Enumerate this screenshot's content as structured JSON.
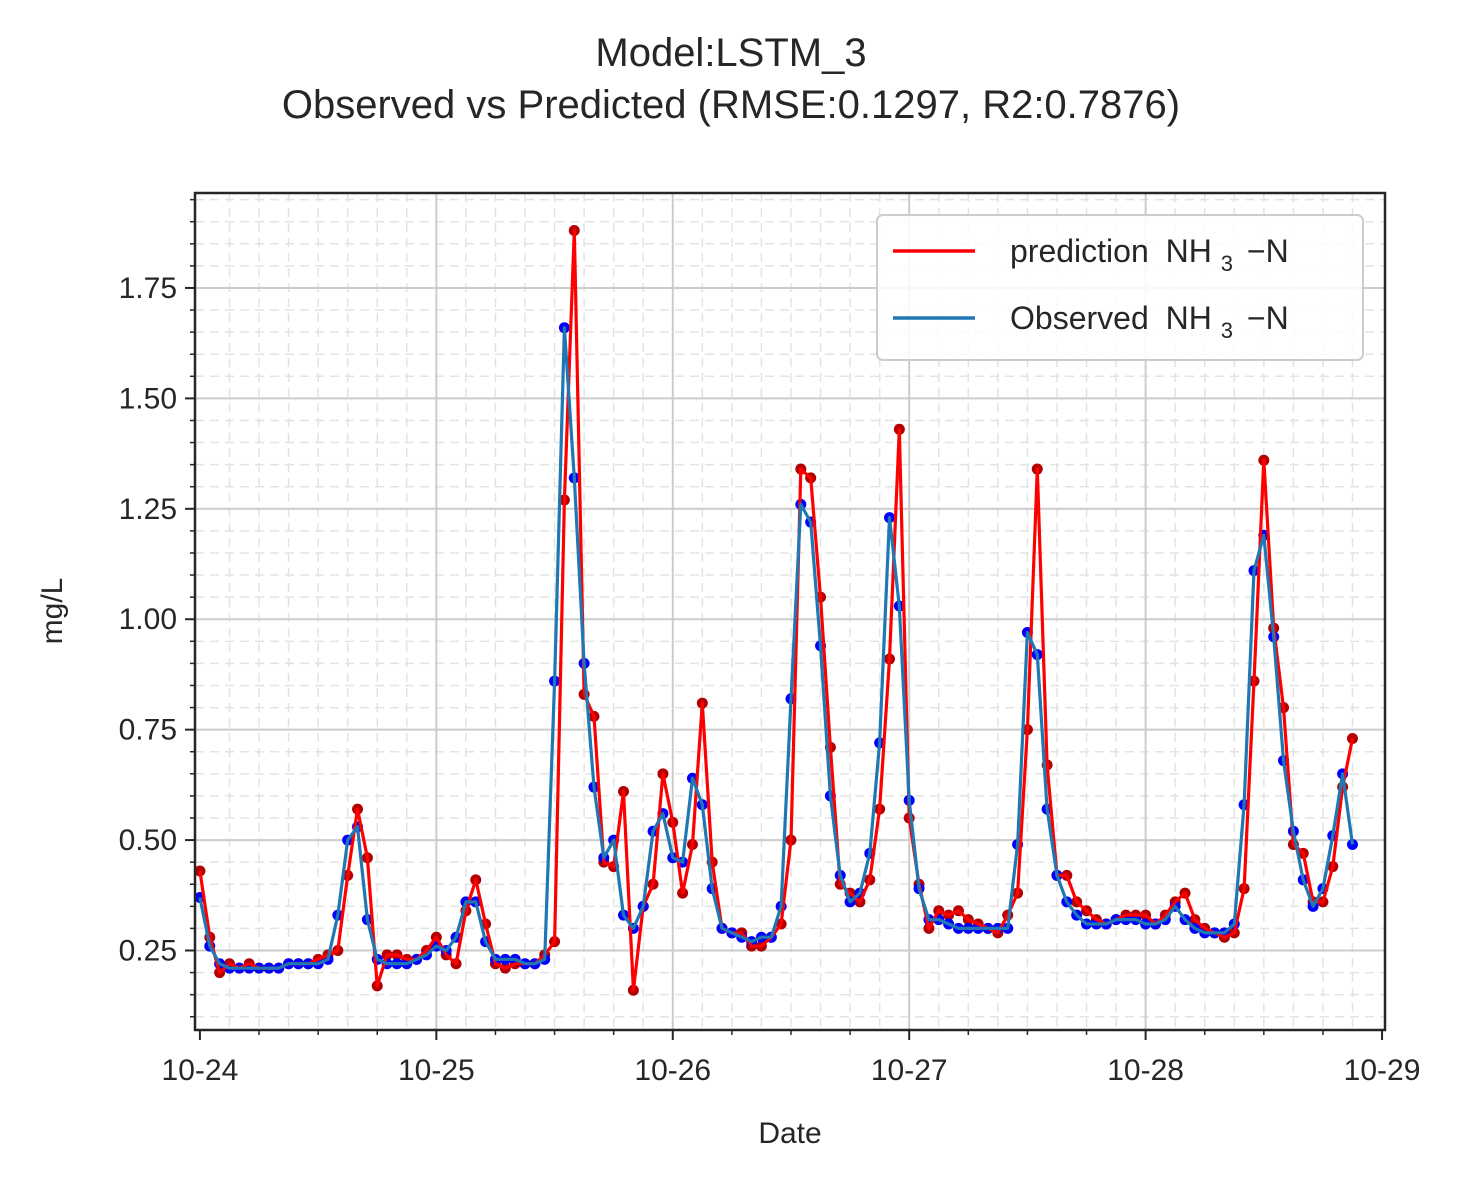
{
  "chart_data": {
    "type": "line",
    "title": "Model:LSTM_3",
    "subtitle": "Observed vs Predicted (RMSE:0.1297, R2:0.7876)",
    "xlabel": "Date",
    "ylabel": "mg/L",
    "x_start": "10-24",
    "x_step_hours": 1,
    "x_ticks": [
      "10-24",
      "10-25",
      "10-26",
      "10-27",
      "10-28",
      "10-29"
    ],
    "xlim_hours": [
      -0.5,
      120.3
    ],
    "y_ticks": [
      "0.25",
      "0.50",
      "0.75",
      "1.00",
      "1.25",
      "1.50",
      "1.75"
    ],
    "ylim": [
      0.07,
      1.965
    ],
    "grid": true,
    "legend_position": "top-right",
    "series": [
      {
        "name": "prediction",
        "subscript": "3",
        "name_suffix": "−N",
        "line_color": "#ff0000",
        "marker_color": "#b30000",
        "values": [
          0.43,
          0.28,
          0.2,
          0.22,
          0.21,
          0.22,
          0.21,
          0.21,
          0.21,
          0.22,
          0.22,
          0.22,
          0.23,
          0.24,
          0.25,
          0.42,
          0.57,
          0.46,
          0.17,
          0.24,
          0.24,
          0.23,
          0.23,
          0.25,
          0.28,
          0.24,
          0.22,
          0.34,
          0.41,
          0.31,
          0.22,
          0.21,
          0.22,
          0.22,
          0.22,
          0.24,
          0.27,
          1.27,
          1.88,
          0.83,
          0.78,
          0.45,
          0.44,
          0.61,
          0.16,
          0.35,
          0.4,
          0.65,
          0.54,
          0.38,
          0.49,
          0.81,
          0.45,
          0.3,
          0.29,
          0.29,
          0.26,
          0.26,
          0.28,
          0.31,
          0.5,
          1.34,
          1.32,
          1.05,
          0.71,
          0.4,
          0.38,
          0.36,
          0.41,
          0.57,
          0.91,
          1.43,
          0.55,
          0.4,
          0.3,
          0.34,
          0.33,
          0.34,
          0.32,
          0.31,
          0.3,
          0.29,
          0.33,
          0.38,
          0.75,
          1.34,
          0.67,
          0.42,
          0.42,
          0.36,
          0.34,
          0.32,
          0.31,
          0.32,
          0.33,
          0.33,
          0.33,
          0.31,
          0.33,
          0.36,
          0.38,
          0.32,
          0.3,
          0.29,
          0.28,
          0.29,
          0.39,
          0.86,
          1.36,
          0.98,
          0.8,
          0.49,
          0.47,
          0.36,
          0.36,
          0.44,
          0.62,
          0.73
        ]
      },
      {
        "name": "Observed",
        "subscript": "3",
        "name_suffix": "−N",
        "line_color": "#1f77b4",
        "marker_color": "#0000ff",
        "values": [
          0.37,
          0.26,
          0.22,
          0.21,
          0.21,
          0.21,
          0.21,
          0.21,
          0.21,
          0.22,
          0.22,
          0.22,
          0.22,
          0.23,
          0.33,
          0.5,
          0.53,
          0.32,
          0.23,
          0.22,
          0.22,
          0.22,
          0.23,
          0.24,
          0.26,
          0.25,
          0.28,
          0.36,
          0.36,
          0.27,
          0.23,
          0.23,
          0.23,
          0.22,
          0.22,
          0.23,
          0.86,
          1.66,
          1.32,
          0.9,
          0.62,
          0.46,
          0.5,
          0.33,
          0.3,
          0.35,
          0.52,
          0.56,
          0.46,
          0.45,
          0.64,
          0.58,
          0.39,
          0.3,
          0.29,
          0.28,
          0.27,
          0.28,
          0.28,
          0.35,
          0.82,
          1.26,
          1.22,
          0.94,
          0.6,
          0.42,
          0.36,
          0.38,
          0.47,
          0.72,
          1.23,
          1.03,
          0.59,
          0.39,
          0.32,
          0.32,
          0.31,
          0.3,
          0.3,
          0.3,
          0.3,
          0.3,
          0.3,
          0.49,
          0.97,
          0.92,
          0.57,
          0.42,
          0.36,
          0.33,
          0.31,
          0.31,
          0.31,
          0.32,
          0.32,
          0.32,
          0.31,
          0.31,
          0.32,
          0.35,
          0.32,
          0.3,
          0.29,
          0.29,
          0.29,
          0.31,
          0.58,
          1.11,
          1.19,
          0.96,
          0.68,
          0.52,
          0.41,
          0.35,
          0.39,
          0.51,
          0.65,
          0.49
        ]
      }
    ]
  }
}
